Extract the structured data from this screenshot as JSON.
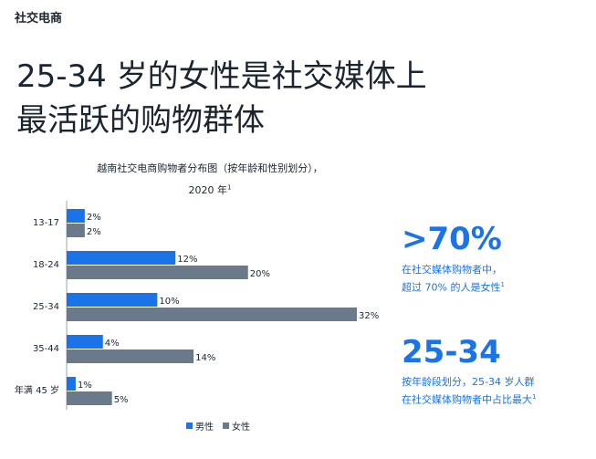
{
  "section_label": "社交电商",
  "headline": {
    "line1": "25-34 岁的女性是社交媒体上",
    "line2": "最活跃的购物群体"
  },
  "chart_title": {
    "line1": "越南社交电商购物者分布图（按年龄和性别划分），",
    "line2": "2020 年",
    "footnote": "1"
  },
  "chart_data": {
    "type": "bar",
    "orientation": "horizontal",
    "categories": [
      "13-17",
      "18-24",
      "25-34",
      "35-44",
      "年满 45 岁"
    ],
    "series": [
      {
        "name": "男性",
        "values": [
          2,
          12,
          10,
          4,
          1
        ],
        "color": "#1a73e8"
      },
      {
        "name": "女性",
        "values": [
          2,
          20,
          32,
          14,
          5
        ],
        "color": "#6b7a8a"
      }
    ],
    "value_suffix": "%",
    "xlim": [
      0,
      32
    ],
    "grid": false,
    "legend": "bottom-center"
  },
  "legend": {
    "male": "男性",
    "female": "女性"
  },
  "stats": [
    {
      "value": ">70%",
      "line1": "在社交媒体购物者中，",
      "line2": "超过 70% 的人是女性",
      "footnote": "1"
    },
    {
      "value": "25-34",
      "line1": "按年龄段划分，25-34 岁人群",
      "line2": "在社交媒体购物者中占比最大",
      "footnote": "1"
    }
  ]
}
